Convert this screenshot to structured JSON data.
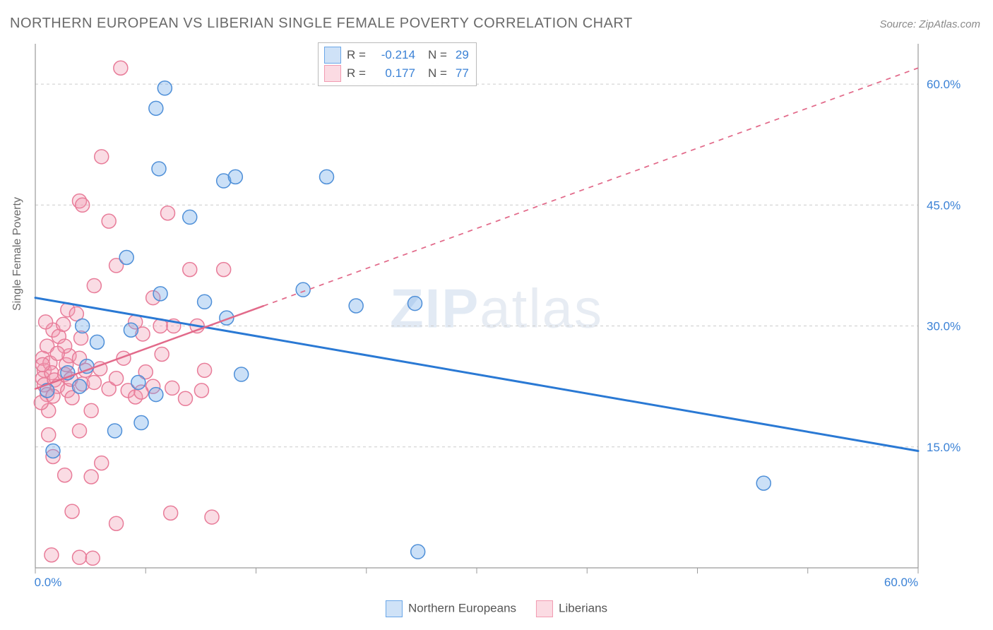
{
  "title": "NORTHERN EUROPEAN VS LIBERIAN SINGLE FEMALE POVERTY CORRELATION CHART",
  "source": "Source: ZipAtlas.com",
  "ylabel": "Single Female Poverty",
  "watermark_a": "ZIP",
  "watermark_b": "atlas",
  "chart": {
    "type": "scatter",
    "background_color": "#ffffff",
    "grid_color": "#cccccc",
    "axis_color": "#9a9a9a",
    "xlim": [
      0,
      60
    ],
    "ylim": [
      0,
      65
    ],
    "x_ticks": [
      0,
      7.5,
      15,
      22.5,
      30,
      37.5,
      45,
      52.5,
      60
    ],
    "x_tick_labels": {
      "0": "0.0%",
      "60": "60.0%"
    },
    "y_gridlines": [
      60,
      45,
      30,
      15
    ],
    "y_tick_labels": {
      "60": "60.0%",
      "45": "45.0%",
      "30": "30.0%",
      "15": "15.0%"
    },
    "label_fontsize": 17,
    "label_color": "#3b82d6",
    "marker_radius": 10,
    "marker_fill_opacity": 0.35,
    "marker_stroke_width": 1.5,
    "series": [
      {
        "name": "Northern Europeans",
        "color": "#6aa6e8",
        "stroke": "#4e8fd8",
        "R": "-0.214",
        "N": "29",
        "trend": {
          "x1": 0,
          "y1": 33.5,
          "x2": 60,
          "y2": 14.5,
          "solid_to_x": 60,
          "stroke": "#2a79d4",
          "width": 3
        },
        "points": [
          [
            8.8,
            59.5
          ],
          [
            8.2,
            57.0
          ],
          [
            10.5,
            43.5
          ],
          [
            8.4,
            49.5
          ],
          [
            12.8,
            48.0
          ],
          [
            13.6,
            48.5
          ],
          [
            19.8,
            48.5
          ],
          [
            25.8,
            32.8
          ],
          [
            6.2,
            38.5
          ],
          [
            6.5,
            29.5
          ],
          [
            8.5,
            34.0
          ],
          [
            11.5,
            33.0
          ],
          [
            13.0,
            31.0
          ],
          [
            7.0,
            23.0
          ],
          [
            3.5,
            25.0
          ],
          [
            3.0,
            22.5
          ],
          [
            0.8,
            22.0
          ],
          [
            5.4,
            17.0
          ],
          [
            7.2,
            18.0
          ],
          [
            1.2,
            14.5
          ],
          [
            8.2,
            21.5
          ],
          [
            14.0,
            24.0
          ],
          [
            26.0,
            2.0
          ],
          [
            49.5,
            10.5
          ],
          [
            21.8,
            32.5
          ],
          [
            18.2,
            34.5
          ],
          [
            3.2,
            30.0
          ],
          [
            4.2,
            28.0
          ],
          [
            2.2,
            24.2
          ]
        ]
      },
      {
        "name": "Liberians",
        "color": "#f29bb1",
        "stroke": "#e87c99",
        "R": "0.177",
        "N": "77",
        "trend": {
          "x1": 0,
          "y1": 22.2,
          "x2": 60,
          "y2": 62.0,
          "solid_to_x": 15.5,
          "stroke": "#e26a8a",
          "width": 2.5
        },
        "points": [
          [
            5.8,
            62.0
          ],
          [
            4.5,
            51.0
          ],
          [
            3.0,
            45.5
          ],
          [
            3.2,
            45.0
          ],
          [
            9.0,
            44.0
          ],
          [
            5.0,
            43.0
          ],
          [
            5.5,
            37.5
          ],
          [
            10.5,
            37.0
          ],
          [
            12.8,
            37.0
          ],
          [
            8.0,
            33.5
          ],
          [
            4.0,
            35.0
          ],
          [
            2.2,
            32.0
          ],
          [
            6.8,
            30.5
          ],
          [
            9.4,
            30.0
          ],
          [
            8.5,
            30.0
          ],
          [
            11.0,
            30.0
          ],
          [
            7.3,
            29.0
          ],
          [
            1.2,
            29.5
          ],
          [
            0.8,
            27.5
          ],
          [
            0.5,
            26.0
          ],
          [
            0.6,
            24.5
          ],
          [
            0.5,
            23.5
          ],
          [
            0.6,
            22.7
          ],
          [
            0.8,
            21.5
          ],
          [
            1.0,
            25.4
          ],
          [
            1.1,
            24.2
          ],
          [
            1.3,
            23.3
          ],
          [
            1.5,
            22.5
          ],
          [
            1.2,
            21.3
          ],
          [
            2.0,
            24.0
          ],
          [
            2.1,
            25.2
          ],
          [
            2.2,
            22.0
          ],
          [
            2.4,
            23.4
          ],
          [
            2.3,
            26.3
          ],
          [
            2.5,
            21.1
          ],
          [
            0.9,
            19.5
          ],
          [
            1.6,
            28.7
          ],
          [
            3.2,
            22.8
          ],
          [
            2.0,
            27.5
          ],
          [
            3.1,
            28.5
          ],
          [
            0.4,
            20.5
          ],
          [
            0.5,
            25.2
          ],
          [
            1.9,
            30.2
          ],
          [
            3.0,
            26.0
          ],
          [
            3.4,
            24.5
          ],
          [
            4.0,
            23.0
          ],
          [
            4.4,
            24.7
          ],
          [
            5.0,
            22.2
          ],
          [
            5.5,
            23.5
          ],
          [
            6.3,
            22.0
          ],
          [
            6.0,
            26.0
          ],
          [
            6.8,
            21.2
          ],
          [
            7.5,
            24.3
          ],
          [
            8.0,
            22.5
          ],
          [
            8.6,
            26.5
          ],
          [
            9.3,
            22.3
          ],
          [
            10.2,
            21.0
          ],
          [
            11.3,
            22.0
          ],
          [
            11.5,
            24.5
          ],
          [
            3.8,
            19.5
          ],
          [
            3.0,
            17.0
          ],
          [
            0.9,
            16.5
          ],
          [
            1.2,
            13.8
          ],
          [
            2.0,
            11.5
          ],
          [
            3.8,
            11.3
          ],
          [
            4.5,
            13.0
          ],
          [
            2.5,
            7.0
          ],
          [
            5.5,
            5.5
          ],
          [
            9.2,
            6.8
          ],
          [
            12.0,
            6.3
          ],
          [
            1.1,
            1.6
          ],
          [
            3.0,
            1.3
          ],
          [
            3.9,
            1.2
          ],
          [
            7.2,
            21.8
          ],
          [
            2.8,
            31.5
          ],
          [
            0.7,
            30.5
          ],
          [
            1.5,
            26.6
          ]
        ]
      }
    ]
  },
  "legend_bottom": [
    {
      "label": "Northern Europeans",
      "swatch_fill": "#cfe2f7",
      "swatch_border": "#6aa6e8"
    },
    {
      "label": "Liberians",
      "swatch_fill": "#fbdbe3",
      "swatch_border": "#f29bb1"
    }
  ],
  "legend_top_swatches": [
    {
      "fill": "#cfe2f7",
      "border": "#6aa6e8"
    },
    {
      "fill": "#fbdbe3",
      "border": "#f29bb1"
    }
  ]
}
